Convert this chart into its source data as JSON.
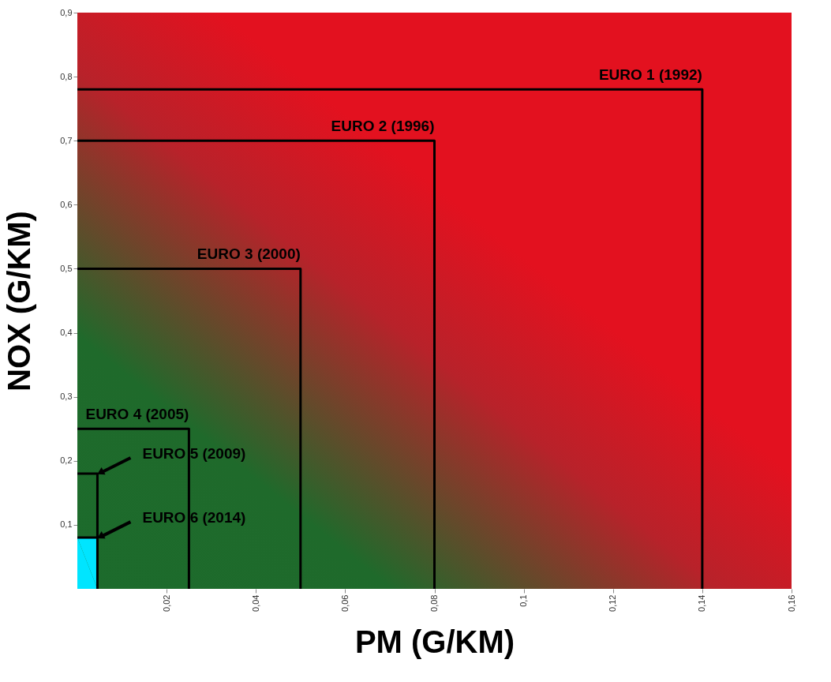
{
  "chart_data": {
    "type": "line",
    "xlabel": "PM (G/KM)",
    "ylabel": "NOX (G/KM)",
    "xlim": [
      0,
      0.16
    ],
    "ylim": [
      0,
      0.9
    ],
    "xticks": [
      {
        "value": 0.02,
        "label": "0,02"
      },
      {
        "value": 0.04,
        "label": "0,04"
      },
      {
        "value": 0.06,
        "label": "0,06"
      },
      {
        "value": 0.08,
        "label": "0,08"
      },
      {
        "value": 0.1,
        "label": "0,1"
      },
      {
        "value": 0.12,
        "label": "0,12"
      },
      {
        "value": 0.14,
        "label": "0,14"
      },
      {
        "value": 0.16,
        "label": "0,16"
      }
    ],
    "yticks": [
      {
        "value": 0.1,
        "label": "0,1"
      },
      {
        "value": 0.2,
        "label": "0,2"
      },
      {
        "value": 0.3,
        "label": "0,3"
      },
      {
        "value": 0.4,
        "label": "0,4"
      },
      {
        "value": 0.5,
        "label": "0,5"
      },
      {
        "value": 0.6,
        "label": "0,6"
      },
      {
        "value": 0.7,
        "label": "0,7"
      },
      {
        "value": 0.8,
        "label": "0,8"
      },
      {
        "value": 0.9,
        "label": "0,9"
      }
    ],
    "grid": false,
    "marker": "none",
    "line_style": "solid",
    "series": [
      {
        "color": "#000000",
        "x": [
          0,
          0.14,
          0.14
        ],
        "values": [
          0.78,
          0.78,
          0
        ]
      },
      {
        "color": "#000000",
        "x": [
          0,
          0.08,
          0.08
        ],
        "values": [
          0.7,
          0.7,
          0
        ]
      },
      {
        "color": "#000000",
        "x": [
          0,
          0.05,
          0.05
        ],
        "values": [
          0.5,
          0.5,
          0
        ]
      },
      {
        "color": "#000000",
        "x": [
          0,
          0.025,
          0.025
        ],
        "values": [
          0.25,
          0.25,
          0
        ]
      },
      {
        "color": "#000000",
        "x": [
          0,
          0.0045,
          0.0045
        ],
        "values": [
          0.18,
          0.18,
          0
        ]
      },
      {
        "type": "area",
        "color": "#00e5ff",
        "x": [
          0,
          0.0045,
          0.0045
        ],
        "values": [
          0.08,
          0.08,
          0
        ]
      }
    ],
    "annotations": [
      {
        "text": "EURO 1 (1992)",
        "x": 0.14,
        "y": 0.78
      },
      {
        "text": "EURO 2 (1996)",
        "x": 0.08,
        "y": 0.7
      },
      {
        "text": "EURO 3 (2000)",
        "x": 0.05,
        "y": 0.5
      },
      {
        "text": "EURO 4 (2005)",
        "x": 0.025,
        "y": 0.25
      },
      {
        "text": "EURO 5 (2009)",
        "x": 0.0045,
        "y": 0.18
      },
      {
        "text": "EURO 6 (2014)",
        "x": 0.0045,
        "y": 0.08
      }
    ]
  }
}
